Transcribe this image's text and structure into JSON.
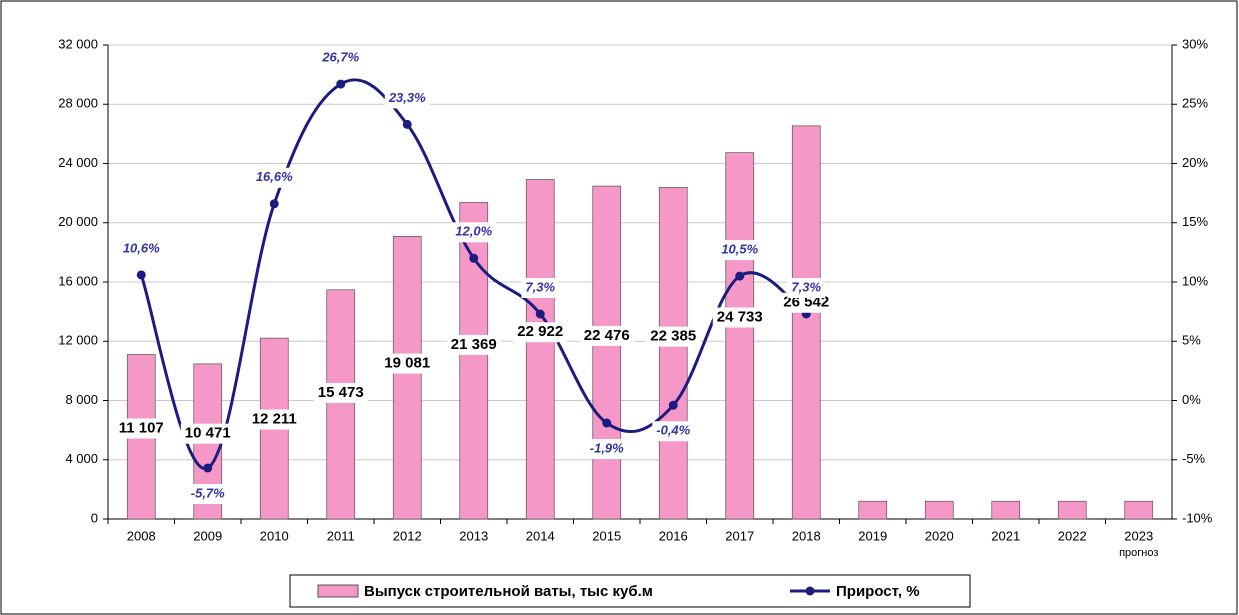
{
  "chart_data": {
    "type": "bar",
    "categories": [
      "2008",
      "2009",
      "2010",
      "2011",
      "2012",
      "2013",
      "2014",
      "2015",
      "2016",
      "2017",
      "2018",
      "2019",
      "2020",
      "2021",
      "2022",
      "2023"
    ],
    "category_note": "прогноз",
    "series": [
      {
        "name": "Выпуск строительной ваты, тыс куб.м",
        "type": "bar",
        "color": "#f598c8",
        "values": [
          11107,
          10471,
          12211,
          15473,
          19081,
          21369,
          22922,
          22476,
          22385,
          24733,
          26542,
          1200,
          1200,
          1200,
          1200,
          1200
        ],
        "value_labels": [
          "11 107",
          "10 471",
          "12 211",
          "15 473",
          "19 081",
          "21 369",
          "22 922",
          "22 476",
          "22 385",
          "24 733",
          "26 542",
          null,
          null,
          null,
          null,
          null
        ]
      },
      {
        "name": "Прирост, %",
        "type": "line",
        "axis": "y2",
        "color": "#1c1c80",
        "values": [
          10.6,
          -5.7,
          16.6,
          26.7,
          23.3,
          12.0,
          7.3,
          -1.9,
          -0.4,
          10.5,
          7.3,
          null,
          null,
          null,
          null,
          null
        ],
        "value_labels": [
          "10,6%",
          "-5,7%",
          "16,6%",
          "26,7%",
          "23,3%",
          "12,0%",
          "7,3%",
          "-1,9%",
          "-0,4%",
          "10,5%",
          "7,3%",
          null,
          null,
          null,
          null,
          null
        ]
      }
    ],
    "ylim": [
      0,
      32000
    ],
    "yticks": [
      0,
      {
        "value": 4000,
        "label": "4 000"
      },
      {
        "value": 8000,
        "label": "8 000"
      },
      {
        "value": 12000,
        "label": "12 000"
      },
      {
        "value": 16000,
        "label": "16 000"
      },
      {
        "value": 20000,
        "label": "20 000"
      },
      {
        "value": 24000,
        "label": "24 000"
      },
      {
        "value": 28000,
        "label": "28 000"
      },
      {
        "value": 32000,
        "label": "32 000"
      }
    ],
    "y2lim": [
      -10,
      30
    ],
    "y2ticks": [
      {
        "value": -10,
        "label": "-10%"
      },
      {
        "value": -5,
        "label": "-5%"
      },
      {
        "value": 0,
        "label": "0%"
      },
      {
        "value": 5,
        "label": "5%"
      },
      {
        "value": 10,
        "label": "10%"
      },
      {
        "value": 15,
        "label": "15%"
      },
      {
        "value": 20,
        "label": "20%"
      },
      {
        "value": 25,
        "label": "25%"
      },
      {
        "value": 30,
        "label": "30%"
      }
    ],
    "grid": true,
    "legend": "bottom"
  }
}
